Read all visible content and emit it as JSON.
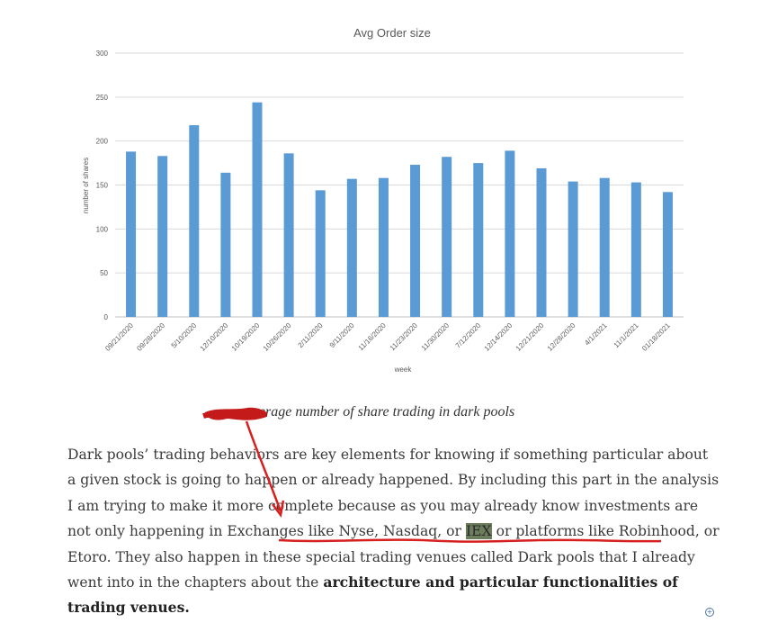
{
  "chart_data": {
    "type": "bar",
    "title": "Avg  Order size",
    "xlabel": "week",
    "ylabel": "number of shares",
    "ylim": [
      0,
      300
    ],
    "yticks": [
      0,
      50,
      100,
      150,
      200,
      250,
      300
    ],
    "grid": true,
    "color": "#5b9bd5",
    "categories": [
      "09/21/2020",
      "09/28/2020",
      "5/10/2020",
      "12/10/2020",
      "10/19/2020",
      "10/26/2020",
      "2/11/2020",
      "9/11/2020",
      "11/16/2020",
      "11/23/2020",
      "11/30/2020",
      "7/12/2020",
      "12/14/2020",
      "12/21/2020",
      "12/28/2020",
      "4/1/2021",
      "11/1/2021",
      "01/18/2021"
    ],
    "values": [
      188,
      183,
      218,
      164,
      244,
      186,
      144,
      157,
      158,
      173,
      182,
      175,
      189,
      169,
      154,
      158,
      153,
      142
    ]
  },
  "caption": "average number of share trading in dark pools",
  "article": {
    "p1": "Dark pools’ trading behaviors are key elements for knowing if something particular about a given stock is going to happen or already happened. By including this part in the analysis I am trying to make it more complete because as you may already know investments are not only happening in Exchanges like Nyse, Nasdaq, or ",
    "highlight": "IEX",
    "p2": " or platforms like Robinhood, or Etoro. They also happen in these special trading venues called Dark pools that I already went into in the chapters about the ",
    "bold": "architecture and particular functionalities of trading venues.",
    "annotation_color": "#d62020"
  }
}
